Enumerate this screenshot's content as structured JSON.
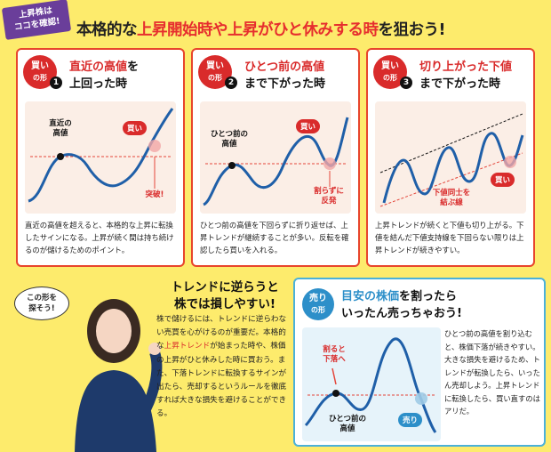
{
  "header": {
    "tag_line1": "上昇株は",
    "tag_line2": "ココを確認!",
    "headline_pre": "本格的な",
    "headline_hl": "上昇開始時や上昇がひと休みする時",
    "headline_post": "を狙おう!"
  },
  "panels": [
    {
      "badge_top": "買い",
      "badge_bottom": "の形",
      "number": "1",
      "title_red": "直近の高値",
      "title_rest1": "を",
      "title_line2": "上回った時",
      "labels": {
        "peak": "直近の\n高値",
        "buy": "買い",
        "breakout": "突破!"
      },
      "desc": "直近の高値を超えると、本格的な上昇に転換したサインになる。上昇が続く間は持ち続けるのが儲けるためのポイント。"
    },
    {
      "badge_top": "買い",
      "badge_bottom": "の形",
      "number": "2",
      "title_red": "ひとつ前の高値",
      "title_rest1": "",
      "title_line2": "まで下がった時",
      "labels": {
        "peak": "ひとつ前の\n高値",
        "buy": "買い",
        "bounce": "割らずに\n反発"
      },
      "desc": "ひとつ前の高値を下回らずに折り返せば、上昇トレンドが継続することが多い。反転を確認したら買いを入れる。"
    },
    {
      "badge_top": "買い",
      "badge_bottom": "の形",
      "number": "3",
      "title_red": "切り上がった下値",
      "title_rest1": "",
      "title_line2": "まで下がった時",
      "labels": {
        "buy": "買い",
        "lows": "下値同士を\n結ぶ線"
      },
      "desc": "上昇トレンドが続くと下値も切り上がる。下値を結んだ下値支持線を下回らない限りは上昇トレンドが続きやすい。"
    }
  ],
  "callout": "この形を\n探そう!",
  "trend": {
    "title_line1": "トレンドに逆らうと",
    "title_line2": "株では損しやすい!",
    "body_pre": "株で儲けるには、トレンドに逆らわない売買を心がけるのが重要だ。本格的な",
    "body_hl1": "上昇トレンド",
    "body_mid": "が始まった時や、株価の上昇がひと休みした時に買おう。また、下落トレンドに転換するサインが出たら、売却するというルールを徹底すれば大きな損失を避けることができる。"
  },
  "sell": {
    "badge_top": "売り",
    "badge_bottom": "の形",
    "title_blue": "目安の株価",
    "title_rest": "を割ったら",
    "title_line2": "いったん売っちゃおう!",
    "labels": {
      "cut": "割ると\n下落へ",
      "peak": "ひとつ前の\n高値",
      "sell": "売り"
    },
    "desc": "ひとつ前の高値を割り込むと、株価下落が続きやすい。大きな損失を避けるため、トレンドが転換したら、いったん売却しよう。上昇トレンドに転換したら、買い直すのはアリだ。"
  },
  "colors": {
    "background": "#fdeb6c",
    "buy_red": "#d92b2b",
    "sell_blue": "#2d8fc9",
    "line_blue": "#1f5fa8"
  }
}
